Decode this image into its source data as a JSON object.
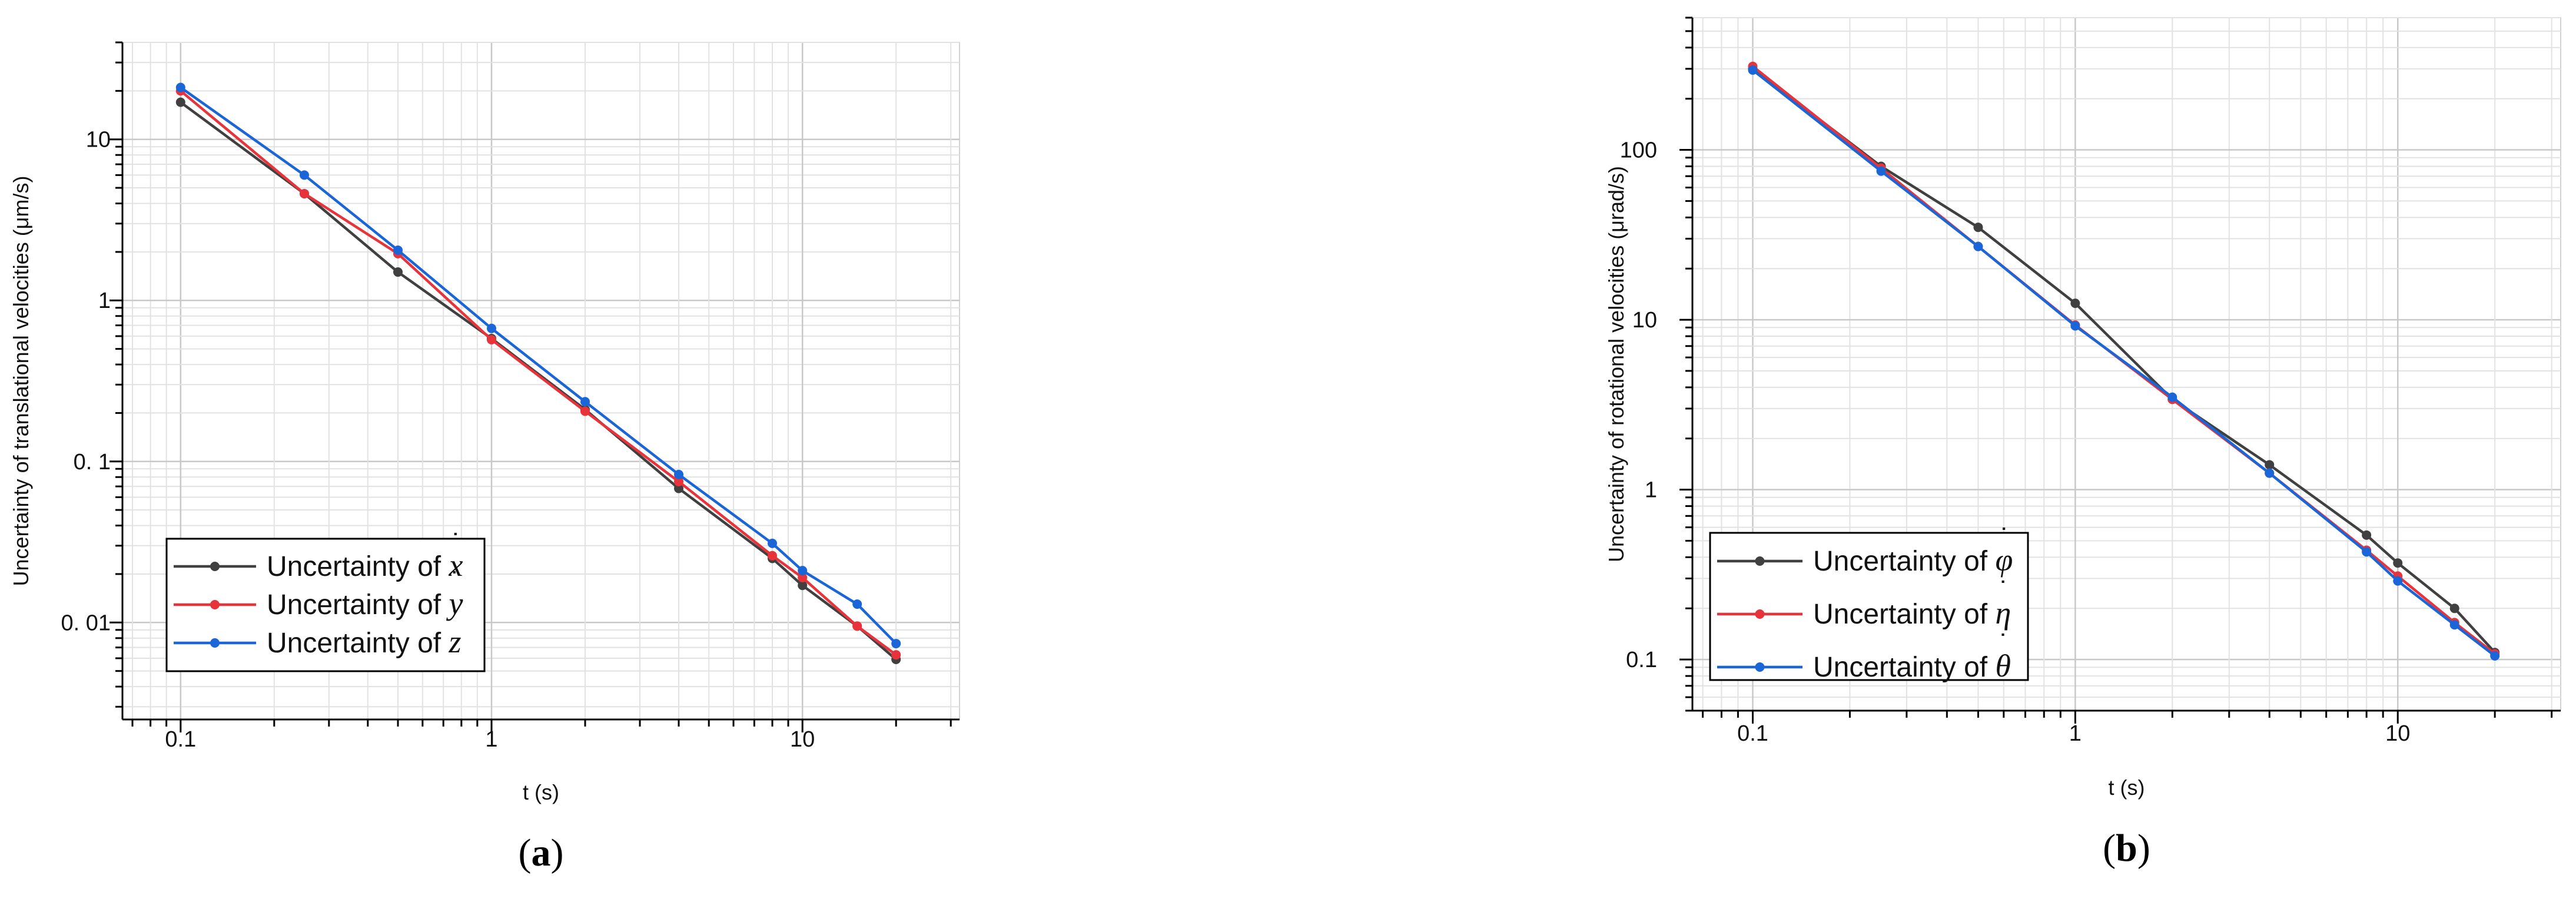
{
  "chart_data": [
    {
      "type": "line",
      "panel_label": "(a)",
      "xlabel": "t (s)",
      "ylabel": "Uncertainty of translational velocities (μm/s)",
      "x_scale": "log",
      "y_scale": "log",
      "xlim": [
        0.065,
        32
      ],
      "ylim": [
        0.0025,
        40
      ],
      "x_ticks": [
        0.1,
        1,
        10
      ],
      "x_tick_labels": [
        "0.1",
        "1",
        "10"
      ],
      "y_ticks": [
        0.01,
        0.1,
        1,
        10
      ],
      "y_tick_labels": [
        "0. 01",
        "0. 1",
        "1",
        "10"
      ],
      "grid": true,
      "legend_position": "bottom-left",
      "x": [
        0.1,
        0.25,
        0.5,
        1,
        2,
        4,
        8,
        10,
        15,
        20
      ],
      "series": [
        {
          "name": "Uncertainty of ẋ",
          "color": "#404040",
          "values": [
            17,
            4.6,
            1.5,
            0.58,
            0.21,
            0.068,
            0.025,
            0.017,
            0.0095,
            0.0059
          ]
        },
        {
          "name": "Uncertainty of ẏ",
          "color": "#e8333a",
          "values": [
            20,
            4.6,
            1.95,
            0.57,
            0.205,
            0.075,
            0.026,
            0.019,
            0.0095,
            0.0063
          ]
        },
        {
          "name": "Uncertainty of ż",
          "color": "#1a66d9",
          "values": [
            21,
            6.0,
            2.05,
            0.67,
            0.235,
            0.083,
            0.031,
            0.021,
            0.013,
            0.0074
          ]
        }
      ],
      "legend_labels": [
        {
          "prefix": "Uncertainty of ",
          "symbol": "x",
          "dot": "˙"
        },
        {
          "prefix": "Uncertainty of ",
          "symbol": "y",
          "dot": "˙"
        },
        {
          "prefix": "Uncertainty of ",
          "symbol": "z",
          "dot": "˙"
        }
      ]
    },
    {
      "type": "line",
      "panel_label": "(b)",
      "xlabel": "t (s)",
      "ylabel": "Uncertainty of rotational velocities (μrad/s)",
      "x_scale": "log",
      "y_scale": "log",
      "xlim": [
        0.065,
        32
      ],
      "ylim": [
        0.05,
        600
      ],
      "x_ticks": [
        0.1,
        1,
        10
      ],
      "x_tick_labels": [
        "0.1",
        "1",
        "10"
      ],
      "y_ticks": [
        0.1,
        1,
        10,
        100
      ],
      "y_tick_labels": [
        "0.1",
        "1",
        "10",
        "100"
      ],
      "grid": true,
      "legend_position": "bottom-left",
      "x": [
        0.1,
        0.25,
        0.5,
        1,
        2,
        4,
        8,
        10,
        15,
        20
      ],
      "series": [
        {
          "name": "Uncertainty of φ̇",
          "color": "#404040",
          "values": [
            300,
            80,
            35,
            12.5,
            3.4,
            1.4,
            0.54,
            0.37,
            0.2,
            0.11
          ]
        },
        {
          "name": "Uncertainty of η̇",
          "color": "#e8333a",
          "values": [
            310,
            78,
            27,
            9.3,
            3.4,
            1.25,
            0.44,
            0.31,
            0.165,
            0.108
          ]
        },
        {
          "name": "Uncertainty of θ̇",
          "color": "#1a66d9",
          "values": [
            295,
            75,
            27,
            9.2,
            3.5,
            1.25,
            0.43,
            0.29,
            0.16,
            0.105
          ]
        }
      ],
      "legend_labels": [
        {
          "prefix": "Uncertainty of ",
          "symbol": "φ",
          "dot": "˙"
        },
        {
          "prefix": "Uncertainty of ",
          "symbol": "η",
          "dot": "˙"
        },
        {
          "prefix": "Uncertainty of ",
          "symbol": "θ",
          "dot": "˙"
        }
      ]
    }
  ]
}
